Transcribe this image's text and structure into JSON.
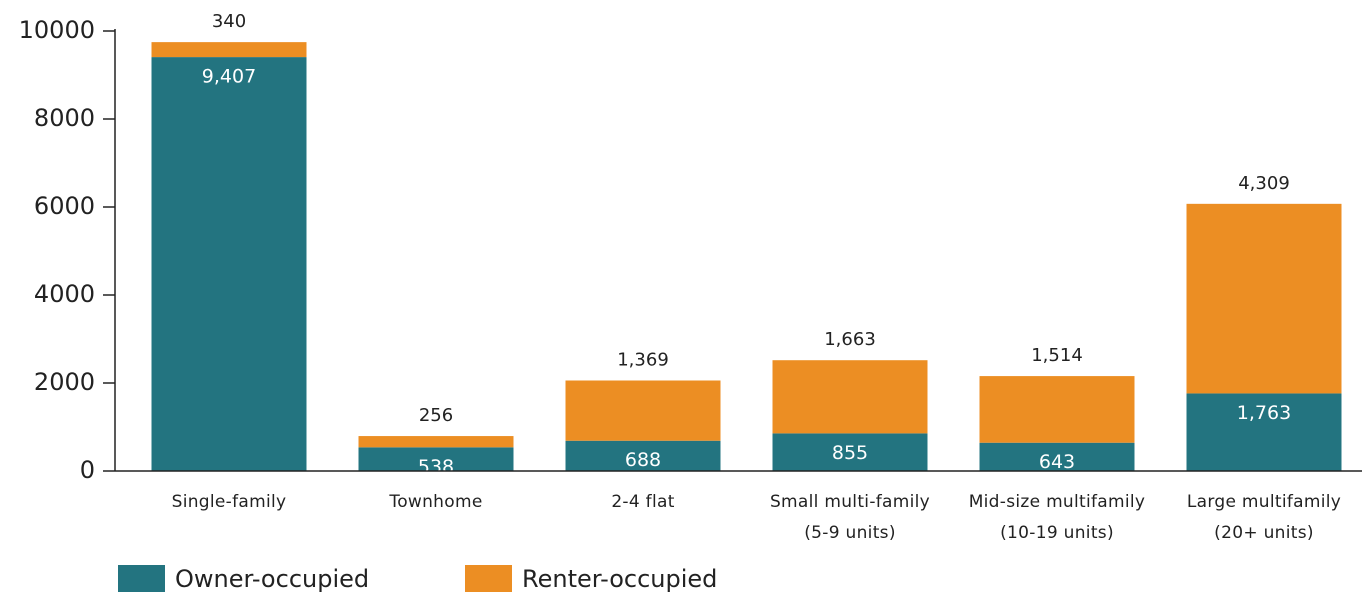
{
  "chart_data": {
    "type": "stacked-bar",
    "categories": [
      "Single-family",
      "Townhome",
      "2-4 flat",
      "Small multi-family (5-9 units)",
      "Mid-size multifamily (10-19 units)",
      "Large multifamily (20+ units)"
    ],
    "series": [
      {
        "name": "Owner-occupied",
        "color": "#237480",
        "values": [
          9407,
          538,
          688,
          855,
          643,
          1763
        ],
        "value_labels": [
          "9,407",
          "538",
          "688",
          "855",
          "643",
          "1,763"
        ]
      },
      {
        "name": "Renter-occupied",
        "color": "#ec8e23",
        "values": [
          340,
          256,
          1369,
          1663,
          1514,
          4309
        ],
        "value_labels": [
          "340",
          "256",
          "1,369",
          "1,663",
          "1,514",
          "4,309"
        ]
      }
    ],
    "ylim": [
      0,
      10000
    ],
    "yticks": [
      0,
      2000,
      4000,
      6000,
      8000,
      10000
    ]
  }
}
